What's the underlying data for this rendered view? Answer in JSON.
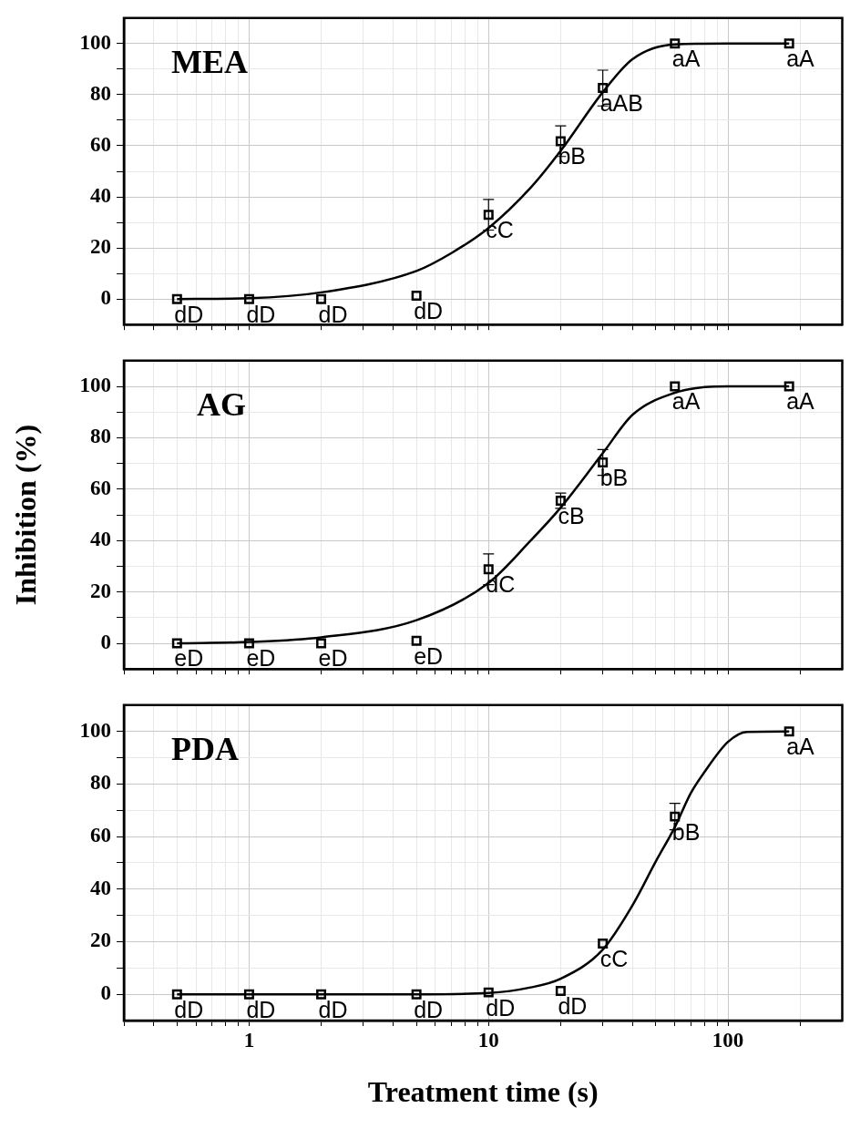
{
  "chart_data": [
    {
      "type": "scatter",
      "title": "MEA",
      "xlim": [
        0.3,
        300
      ],
      "xticks": [
        {
          "value": 0.3,
          "label": null
        },
        {
          "value": 0.4,
          "label": null
        },
        {
          "value": 0.5,
          "label": null
        },
        {
          "value": 0.6,
          "label": null
        },
        {
          "value": 0.7,
          "label": null
        },
        {
          "value": 0.8,
          "label": null
        },
        {
          "value": 0.9,
          "label": null
        },
        1,
        {
          "value": 2,
          "label": null
        },
        {
          "value": 3,
          "label": null
        },
        {
          "value": 4,
          "label": null
        },
        {
          "value": 5,
          "label": null
        },
        {
          "value": 6,
          "label": null
        },
        {
          "value": 7,
          "label": null
        },
        {
          "value": 8,
          "label": null
        },
        {
          "value": 9,
          "label": null
        },
        10,
        {
          "value": 20,
          "label": null
        },
        {
          "value": 30,
          "label": null
        },
        {
          "value": 40,
          "label": null
        },
        {
          "value": 50,
          "label": null
        },
        {
          "value": 60,
          "label": null
        },
        {
          "value": 70,
          "label": null
        },
        {
          "value": 80,
          "label": null
        },
        {
          "value": 90,
          "label": null
        },
        100,
        {
          "value": 200,
          "label": null
        }
      ],
      "ylim": [
        -10,
        110
      ],
      "yticks": [
        0,
        {
          "value": 10,
          "label": null
        },
        20,
        {
          "value": 30,
          "label": null
        },
        40,
        {
          "value": 50,
          "label": null
        },
        60,
        {
          "value": 70,
          "label": null
        },
        80,
        {
          "value": 90,
          "label": null
        },
        100
      ],
      "log": "x",
      "grid": true,
      "tick_labels": "y",
      "series": [
        {
          "type": "line",
          "color": "#000000",
          "marker": "none",
          "x": [
            0.5,
            1,
            2,
            5,
            7,
            10,
            15,
            20,
            30,
            40,
            60,
            100,
            180
          ],
          "values": [
            0,
            0.3,
            2.6,
            11,
            18,
            27.8,
            43.6,
            58,
            81,
            94,
            99.7,
            100,
            100
          ]
        },
        {
          "type": "scatter",
          "color": "#000000",
          "marker": "square",
          "x": [
            0.5,
            1,
            2,
            5,
            10,
            20,
            30,
            60,
            180
          ],
          "values": [
            0,
            0,
            0,
            1.3,
            33,
            61.8,
            82.6,
            100,
            100
          ],
          "errors": [
            null,
            null,
            null,
            null,
            6,
            6,
            7,
            null,
            null
          ]
        }
      ],
      "annotations": [
        {
          "text": "dD",
          "x": 0.5,
          "y": 0
        },
        {
          "text": "dD",
          "x": 1,
          "y": 0
        },
        {
          "text": "dD",
          "x": 2,
          "y": 0
        },
        {
          "text": "dD",
          "x": 5,
          "y": 1.3
        },
        {
          "text": "cC",
          "x": 10,
          "y": 33
        },
        {
          "text": "bB",
          "x": 20,
          "y": 61.8
        },
        {
          "text": "aAB",
          "x": 30,
          "y": 82.6
        },
        {
          "text": "aA",
          "x": 60,
          "y": 100
        },
        {
          "text": "aA",
          "x": 180,
          "y": 100
        }
      ]
    },
    {
      "type": "scatter",
      "title": "AG",
      "ylabel": "Inhibition (%)",
      "xlim": [
        0.3,
        300
      ],
      "xticks": [
        {
          "value": 0.3,
          "label": null
        },
        {
          "value": 0.4,
          "label": null
        },
        {
          "value": 0.5,
          "label": null
        },
        {
          "value": 0.6,
          "label": null
        },
        {
          "value": 0.7,
          "label": null
        },
        {
          "value": 0.8,
          "label": null
        },
        {
          "value": 0.9,
          "label": null
        },
        1,
        {
          "value": 2,
          "label": null
        },
        {
          "value": 3,
          "label": null
        },
        {
          "value": 4,
          "label": null
        },
        {
          "value": 5,
          "label": null
        },
        {
          "value": 6,
          "label": null
        },
        {
          "value": 7,
          "label": null
        },
        {
          "value": 8,
          "label": null
        },
        {
          "value": 9,
          "label": null
        },
        10,
        {
          "value": 20,
          "label": null
        },
        {
          "value": 30,
          "label": null
        },
        {
          "value": 40,
          "label": null
        },
        {
          "value": 50,
          "label": null
        },
        {
          "value": 60,
          "label": null
        },
        {
          "value": 70,
          "label": null
        },
        {
          "value": 80,
          "label": null
        },
        {
          "value": 90,
          "label": null
        },
        100,
        {
          "value": 200,
          "label": null
        }
      ],
      "ylim": [
        -10,
        110
      ],
      "yticks": [
        0,
        {
          "value": 10,
          "label": null
        },
        20,
        {
          "value": 30,
          "label": null
        },
        40,
        {
          "value": 50,
          "label": null
        },
        60,
        {
          "value": 70,
          "label": null
        },
        80,
        {
          "value": 90,
          "label": null
        },
        100
      ],
      "log": "x",
      "grid": true,
      "tick_labels": "y",
      "series": [
        {
          "type": "line",
          "color": "#000000",
          "marker": "none",
          "x": [
            0.5,
            1,
            2,
            5,
            10,
            15,
            20,
            30,
            40,
            60,
            80,
            100,
            180
          ],
          "values": [
            0,
            0.5,
            2.3,
            9,
            23.5,
            40,
            52.8,
            74,
            89,
            97.5,
            99.7,
            100,
            100
          ]
        },
        {
          "type": "scatter",
          "color": "#000000",
          "marker": "square",
          "x": [
            0.5,
            1,
            2,
            5,
            10,
            20,
            30,
            60,
            180
          ],
          "values": [
            0,
            0,
            0,
            1,
            28.8,
            55.5,
            70.4,
            100,
            100
          ],
          "errors": [
            null,
            null,
            null,
            null,
            6,
            3,
            5,
            null,
            null
          ]
        }
      ],
      "annotations": [
        {
          "text": "eD",
          "x": 0.5,
          "y": 0
        },
        {
          "text": "eD",
          "x": 1,
          "y": 0
        },
        {
          "text": "eD",
          "x": 2,
          "y": 0
        },
        {
          "text": "eD",
          "x": 5,
          "y": 1
        },
        {
          "text": "dC",
          "x": 10,
          "y": 28.8
        },
        {
          "text": "cB",
          "x": 20,
          "y": 55.5
        },
        {
          "text": "bB",
          "x": 30,
          "y": 70.4
        },
        {
          "text": "aA",
          "x": 60,
          "y": 100
        },
        {
          "text": "aA",
          "x": 180,
          "y": 100
        }
      ]
    },
    {
      "type": "scatter",
      "title": "PDA",
      "xlabel": "Treatment time (s)",
      "xlim": [
        0.3,
        300
      ],
      "xticks": [
        {
          "value": 0.3,
          "label": null
        },
        {
          "value": 0.4,
          "label": null
        },
        {
          "value": 0.5,
          "label": null
        },
        {
          "value": 0.6,
          "label": null
        },
        {
          "value": 0.7,
          "label": null
        },
        {
          "value": 0.8,
          "label": null
        },
        {
          "value": 0.9,
          "label": null
        },
        1,
        {
          "value": 2,
          "label": null
        },
        {
          "value": 3,
          "label": null
        },
        {
          "value": 4,
          "label": null
        },
        {
          "value": 5,
          "label": null
        },
        {
          "value": 6,
          "label": null
        },
        {
          "value": 7,
          "label": null
        },
        {
          "value": 8,
          "label": null
        },
        {
          "value": 9,
          "label": null
        },
        10,
        {
          "value": 20,
          "label": null
        },
        {
          "value": 30,
          "label": null
        },
        {
          "value": 40,
          "label": null
        },
        {
          "value": 50,
          "label": null
        },
        {
          "value": 60,
          "label": null
        },
        {
          "value": 70,
          "label": null
        },
        {
          "value": 80,
          "label": null
        },
        {
          "value": 90,
          "label": null
        },
        100,
        {
          "value": 200,
          "label": null
        }
      ],
      "ylim": [
        -10,
        110
      ],
      "yticks": [
        0,
        {
          "value": 10,
          "label": null
        },
        20,
        {
          "value": 30,
          "label": null
        },
        40,
        {
          "value": 50,
          "label": null
        },
        60,
        {
          "value": 70,
          "label": null
        },
        80,
        {
          "value": 90,
          "label": null
        },
        100
      ],
      "log": "x",
      "grid": true,
      "series": [
        {
          "type": "line",
          "color": "#000000",
          "marker": "none",
          "x": [
            0.5,
            1,
            2,
            5,
            10,
            15,
            20,
            30,
            40,
            50,
            60,
            70,
            80,
            100,
            120,
            180
          ],
          "values": [
            0,
            0,
            0,
            0,
            0.5,
            2.6,
            5.9,
            17,
            34,
            50.6,
            63.6,
            76.6,
            84.7,
            96,
            99.8,
            100
          ]
        },
        {
          "type": "scatter",
          "color": "#000000",
          "marker": "square",
          "x": [
            0.5,
            1,
            2,
            5,
            10,
            20,
            30,
            60,
            180
          ],
          "values": [
            0,
            0,
            0,
            0,
            0.7,
            1.3,
            19.3,
            67.6,
            100
          ],
          "errors": [
            null,
            null,
            null,
            null,
            null,
            null,
            null,
            5,
            null
          ]
        }
      ],
      "annotations": [
        {
          "text": "dD",
          "x": 0.5,
          "y": 0
        },
        {
          "text": "dD",
          "x": 1,
          "y": 0
        },
        {
          "text": "dD",
          "x": 2,
          "y": 0
        },
        {
          "text": "dD",
          "x": 5,
          "y": 0
        },
        {
          "text": "dD",
          "x": 10,
          "y": 0.7
        },
        {
          "text": "dD",
          "x": 20,
          "y": 1.3
        },
        {
          "text": "cC",
          "x": 30,
          "y": 19.3
        },
        {
          "text": "bB",
          "x": 60,
          "y": 67.6
        },
        {
          "text": "aA",
          "x": 180,
          "y": 100
        }
      ]
    }
  ]
}
